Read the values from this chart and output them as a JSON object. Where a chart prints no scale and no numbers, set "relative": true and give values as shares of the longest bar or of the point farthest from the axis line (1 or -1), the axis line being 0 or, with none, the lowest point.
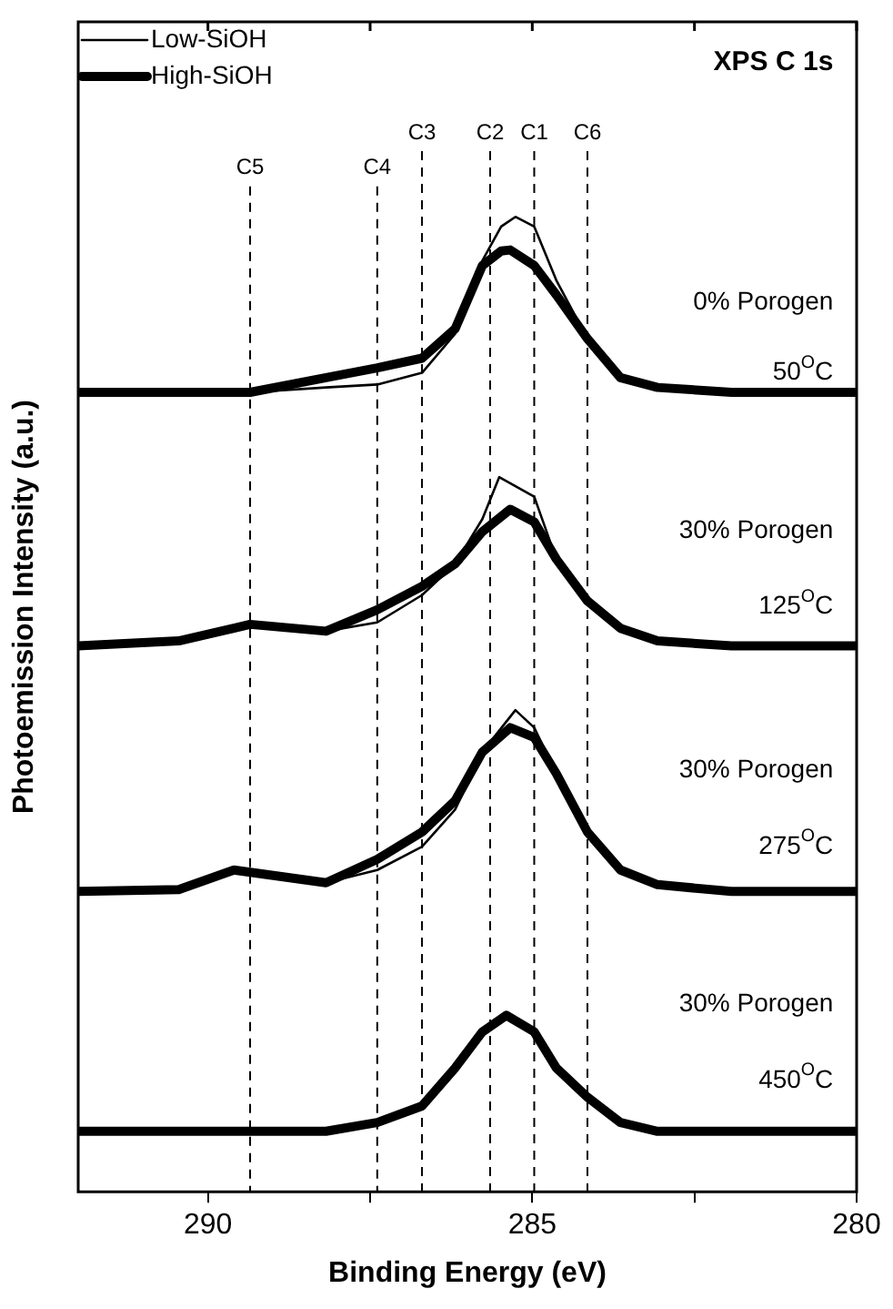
{
  "chart_data": {
    "type": "line",
    "relative": true,
    "xlabel": "Binding Energy (eV)",
    "ylabel": "Photoemission Intensity (a.u.)",
    "xlim": [
      292,
      280
    ],
    "xticks": [
      290,
      {
        "value": 287.5,
        "label": null
      },
      285,
      {
        "value": 282.5,
        "label": null
      },
      280
    ],
    "grid": false,
    "legend": "top left",
    "marker": "none",
    "line_style": "solid",
    "annotations": [
      "XPS C 1s",
      "0% Porogen",
      "50$^{O}$C",
      "30% Porogen",
      "125$^{O}$C",
      "30% Porogen",
      "275$^{O}$C",
      "30% Porogen",
      "450$^{O}$C"
    ],
    "ref_lines": [
      {
        "axis": "x",
        "value": 289.35,
        "label": "C5",
        "line_style": "dashed"
      },
      {
        "axis": "x",
        "value": 287.39,
        "label": "C4",
        "line_style": "dashed"
      },
      {
        "axis": "x",
        "value": 286.7,
        "label": "C3",
        "line_style": "dashed"
      },
      {
        "axis": "x",
        "value": 285.65,
        "label": "C2",
        "line_style": "dashed"
      },
      {
        "axis": "x",
        "value": 284.97,
        "label": "C1",
        "line_style": "dashed"
      },
      {
        "axis": "x",
        "value": 284.15,
        "label": "C6",
        "line_style": "dashed"
      }
    ],
    "series": [
      {
        "name": "Low-SiOH",
        "color": "#000000",
        "x": [
          292,
          290.45,
          289.35,
          288.18,
          287.39,
          286.7,
          286.19,
          285.77,
          285.48,
          285.26,
          284.97,
          284.63,
          284.15,
          283.64,
          283.07,
          281.93,
          280
        ],
        "values": [
          0.82,
          0.82,
          0.82,
          0.825,
          0.828,
          0.84,
          0.88,
          0.955,
          0.99,
          1.0,
          0.99,
          0.935,
          0.875,
          0.835,
          0.825,
          0.82,
          0.82
        ]
      },
      {
        "name": "High-SiOH",
        "color": "#000000",
        "x": [
          292,
          290.45,
          289.35,
          288.18,
          287.39,
          286.7,
          286.19,
          285.77,
          285.48,
          285.34,
          284.97,
          284.63,
          284.15,
          283.64,
          283.07,
          281.93,
          280
        ],
        "values": [
          0.82,
          0.82,
          0.82,
          0.835,
          0.845,
          0.855,
          0.885,
          0.95,
          0.965,
          0.966,
          0.95,
          0.92,
          0.875,
          0.835,
          0.825,
          0.82,
          0.82
        ]
      },
      {
        "color": "#000000",
        "x": [
          292,
          290.45,
          289.35,
          288.18,
          287.39,
          286.7,
          286.19,
          285.77,
          285.51,
          284.97,
          284.63,
          284.15,
          283.64,
          283.07,
          281.93,
          280
        ],
        "values": [
          0.56,
          0.565,
          0.582,
          0.575,
          0.584,
          0.612,
          0.644,
          0.69,
          0.733,
          0.713,
          0.649,
          0.606,
          0.578,
          0.565,
          0.56,
          0.56
        ]
      },
      {
        "color": "#000000",
        "x": [
          292,
          290.45,
          289.35,
          288.18,
          287.39,
          286.7,
          286.19,
          285.77,
          285.34,
          284.97,
          284.63,
          284.15,
          283.64,
          283.07,
          281.93,
          280
        ],
        "values": [
          0.56,
          0.565,
          0.582,
          0.575,
          0.597,
          0.621,
          0.644,
          0.677,
          0.7,
          0.687,
          0.649,
          0.606,
          0.578,
          0.565,
          0.56,
          0.56
        ]
      },
      {
        "color": "#000000",
        "x": [
          292,
          290.45,
          289.6,
          288.18,
          287.39,
          286.7,
          286.19,
          285.77,
          285.26,
          284.97,
          284.63,
          284.15,
          283.64,
          283.07,
          281.93,
          280
        ],
        "values": [
          0.308,
          0.31,
          0.33,
          0.317,
          0.33,
          0.354,
          0.392,
          0.451,
          0.494,
          0.476,
          0.429,
          0.369,
          0.33,
          0.315,
          0.308,
          0.308
        ]
      },
      {
        "color": "#000000",
        "x": [
          292,
          290.45,
          289.6,
          288.18,
          287.39,
          286.7,
          286.19,
          285.77,
          285.34,
          284.97,
          284.63,
          284.15,
          283.64,
          283.07,
          281.93,
          280
        ],
        "values": [
          0.308,
          0.31,
          0.33,
          0.317,
          0.341,
          0.369,
          0.401,
          0.451,
          0.476,
          0.466,
          0.429,
          0.369,
          0.33,
          0.315,
          0.308,
          0.308
        ]
      },
      {
        "color": "#000000",
        "x": [
          292,
          290.45,
          289.35,
          288.18,
          287.39,
          286.7,
          286.19,
          285.77,
          285.4,
          284.97,
          284.63,
          284.15,
          283.64,
          283.07,
          281.93,
          280
        ],
        "values": [
          0.062,
          0.062,
          0.062,
          0.062,
          0.071,
          0.088,
          0.127,
          0.164,
          0.181,
          0.164,
          0.127,
          0.097,
          0.071,
          0.062,
          0.062,
          0.062
        ]
      }
    ]
  }
}
